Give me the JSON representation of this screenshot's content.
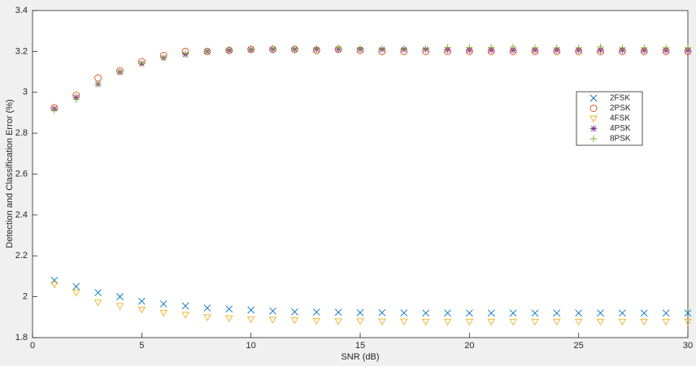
{
  "chart_data": {
    "type": "scatter",
    "x_label": "SNR (dB)",
    "y_label": "Detection and Classification Error (%)",
    "x": [
      1,
      2,
      3,
      4,
      5,
      6,
      7,
      8,
      9,
      10,
      11,
      12,
      13,
      14,
      15,
      16,
      17,
      18,
      19,
      20,
      21,
      22,
      23,
      24,
      25,
      26,
      27,
      28,
      29,
      30
    ],
    "series": [
      {
        "name": "2FSK",
        "color": "#0072bd",
        "marker": "x",
        "values": [
          2.08,
          2.05,
          2.02,
          2.0,
          1.978,
          1.965,
          1.955,
          1.945,
          1.94,
          1.935,
          1.93,
          1.926,
          1.925,
          1.924,
          1.922,
          1.922,
          1.921,
          1.92,
          1.92,
          1.92,
          1.92,
          1.92,
          1.92,
          1.92,
          1.92,
          1.92,
          1.92,
          1.92,
          1.92,
          1.92
        ]
      },
      {
        "name": "2PSK",
        "color": "#d95319",
        "marker": "o",
        "values": [
          2.925,
          2.985,
          3.07,
          3.105,
          3.15,
          3.18,
          3.2,
          3.2,
          3.205,
          3.21,
          3.21,
          3.21,
          3.205,
          3.21,
          3.205,
          3.2,
          3.2,
          3.2,
          3.2,
          3.2,
          3.2,
          3.2,
          3.2,
          3.2,
          3.2,
          3.2,
          3.2,
          3.2,
          3.2,
          3.2
        ]
      },
      {
        "name": "4FSK",
        "color": "#edb120",
        "marker": "v",
        "values": [
          2.06,
          2.02,
          1.972,
          1.955,
          1.937,
          1.922,
          1.912,
          1.9,
          1.895,
          1.89,
          1.888,
          1.885,
          1.882,
          1.88,
          1.88,
          1.879,
          1.879,
          1.878,
          1.878,
          1.878,
          1.878,
          1.878,
          1.878,
          1.878,
          1.878,
          1.878,
          1.878,
          1.878,
          1.878,
          1.878
        ]
      },
      {
        "name": "4PSK",
        "color": "#7e2f8e",
        "marker": "*",
        "values": [
          2.92,
          2.975,
          3.04,
          3.1,
          3.14,
          3.168,
          3.185,
          3.2,
          3.205,
          3.208,
          3.21,
          3.21,
          3.21,
          3.21,
          3.21,
          3.21,
          3.21,
          3.21,
          3.208,
          3.206,
          3.206,
          3.206,
          3.206,
          3.206,
          3.206,
          3.206,
          3.206,
          3.205,
          3.205,
          3.205
        ]
      },
      {
        "name": "8PSK",
        "color": "#77ac30",
        "marker": "+",
        "values": [
          2.91,
          2.965,
          3.04,
          3.1,
          3.14,
          3.168,
          3.19,
          3.2,
          3.21,
          3.21,
          3.215,
          3.215,
          3.215,
          3.218,
          3.215,
          3.215,
          3.215,
          3.215,
          3.22,
          3.22,
          3.22,
          3.222,
          3.218,
          3.218,
          3.218,
          3.222,
          3.218,
          3.218,
          3.218,
          3.218
        ]
      }
    ],
    "xlim": [
      0,
      30
    ],
    "xticks": [
      0,
      5,
      10,
      15,
      20,
      25,
      30
    ],
    "ylim": [
      1.8,
      3.4
    ],
    "yticks": [
      1.8,
      2,
      2.2,
      2.4,
      2.6,
      2.8,
      3,
      3.2,
      3.4
    ]
  }
}
